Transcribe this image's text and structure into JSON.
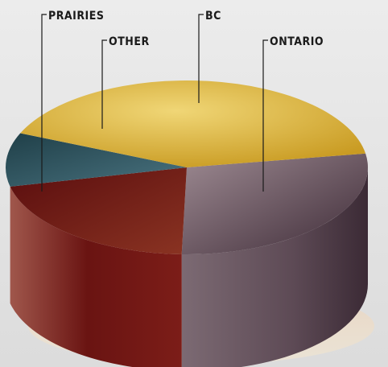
{
  "chart_data": {
    "type": "pie",
    "style": "3d-cylinder",
    "slices": [
      {
        "label": "BC",
        "value": 41,
        "color": "#d9b232"
      },
      {
        "label": "ONTARIO",
        "value": 28,
        "color": "#5a4552"
      },
      {
        "label": "PRAIRIES",
        "value": 21,
        "color": "#6b1413"
      },
      {
        "label": "OTHER",
        "value": 10,
        "color": "#284f58"
      }
    ],
    "legend": "none (leader-line labels)"
  }
}
